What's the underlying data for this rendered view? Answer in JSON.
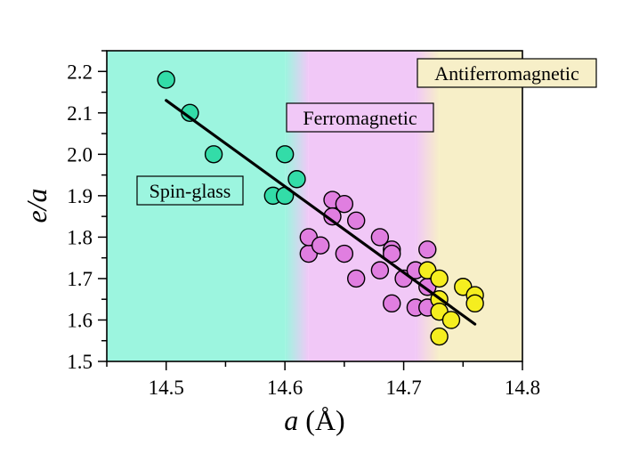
{
  "chart_data": {
    "type": "scatter",
    "xlabel_italic": "a",
    "xlabel_unit": " (Å)",
    "ylabel": "e/a",
    "xlim": [
      14.45,
      14.8
    ],
    "ylim": [
      1.5,
      2.25
    ],
    "xticks": [
      14.5,
      14.6,
      14.7,
      14.8
    ],
    "yticks": [
      1.5,
      1.6,
      1.7,
      1.8,
      1.9,
      2.0,
      2.1,
      2.2
    ],
    "grid": false,
    "regions": [
      {
        "label": "Spin-glass",
        "x_from": 14.45,
        "x_to": 14.61,
        "color": "#9cf5df"
      },
      {
        "label": "Ferromagnetic",
        "x_from": 14.61,
        "x_to": 14.72,
        "color": "#f1c8f7"
      },
      {
        "label": "Antiferromagnetic",
        "x_from": 14.72,
        "x_to": 14.8,
        "color": "#f7efc8"
      }
    ],
    "series": [
      {
        "color": "#33dca8",
        "points": [
          [
            14.5,
            2.18
          ],
          [
            14.52,
            2.1
          ],
          [
            14.54,
            2.0
          ],
          [
            14.59,
            1.9
          ],
          [
            14.6,
            2.0
          ],
          [
            14.6,
            1.9
          ],
          [
            14.61,
            1.94
          ]
        ]
      },
      {
        "color": "#e07ee0",
        "points": [
          [
            14.62,
            1.76
          ],
          [
            14.62,
            1.8
          ],
          [
            14.63,
            1.78
          ],
          [
            14.64,
            1.89
          ],
          [
            14.64,
            1.85
          ],
          [
            14.65,
            1.88
          ],
          [
            14.65,
            1.76
          ],
          [
            14.66,
            1.84
          ],
          [
            14.66,
            1.7
          ],
          [
            14.68,
            1.8
          ],
          [
            14.68,
            1.72
          ],
          [
            14.69,
            1.77
          ],
          [
            14.69,
            1.76
          ],
          [
            14.69,
            1.64
          ],
          [
            14.7,
            1.7
          ],
          [
            14.71,
            1.72
          ],
          [
            14.71,
            1.63
          ],
          [
            14.72,
            1.68
          ],
          [
            14.72,
            1.63
          ],
          [
            14.72,
            1.77
          ]
        ]
      },
      {
        "color": "#f5ee1f",
        "points": [
          [
            14.72,
            1.72
          ],
          [
            14.73,
            1.7
          ],
          [
            14.73,
            1.65
          ],
          [
            14.73,
            1.62
          ],
          [
            14.73,
            1.56
          ],
          [
            14.74,
            1.6
          ],
          [
            14.75,
            1.68
          ],
          [
            14.76,
            1.66
          ],
          [
            14.76,
            1.64
          ]
        ]
      }
    ],
    "fit_line": {
      "x": [
        14.5,
        14.76
      ],
      "y": [
        2.13,
        1.59
      ],
      "color": "#000000"
    }
  }
}
